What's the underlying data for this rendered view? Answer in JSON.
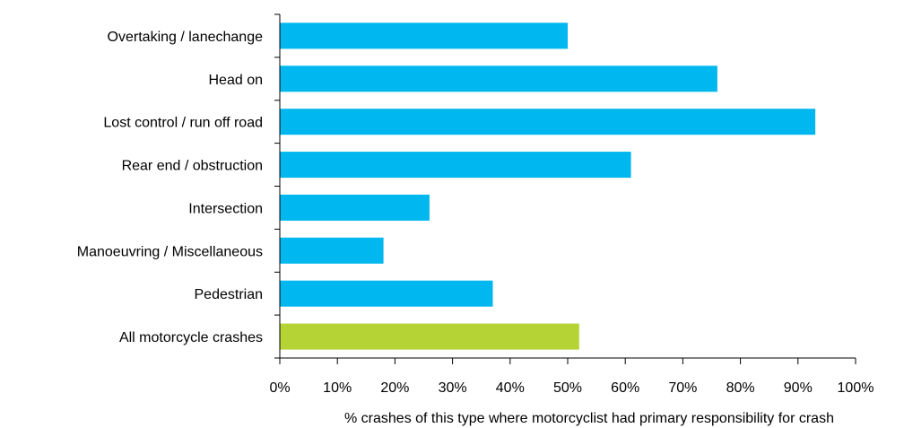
{
  "chart_data": {
    "type": "bar",
    "orientation": "horizontal",
    "categories": [
      "Overtaking / lanechange",
      "Head on",
      "Lost control / run off road",
      "Rear end / obstruction",
      "Intersection",
      "Manoeuvring / Miscellaneous",
      "Pedestrian",
      "All motorcycle crashes"
    ],
    "values": [
      50,
      76,
      93,
      61,
      26,
      18,
      37,
      52
    ],
    "colors": [
      "#00b7ef",
      "#00b7ef",
      "#00b7ef",
      "#00b7ef",
      "#00b7ef",
      "#00b7ef",
      "#00b7ef",
      "#b5d334"
    ],
    "title": "",
    "xlabel": "% crashes of this type where motorcyclist had primary responsibility for crash",
    "ylabel": "",
    "xlim": [
      0,
      100
    ],
    "xticks": [
      "0%",
      "10%",
      "20%",
      "30%",
      "40%",
      "50%",
      "60%",
      "70%",
      "80%",
      "90%",
      "100%"
    ],
    "grid": false,
    "legend": "none"
  }
}
